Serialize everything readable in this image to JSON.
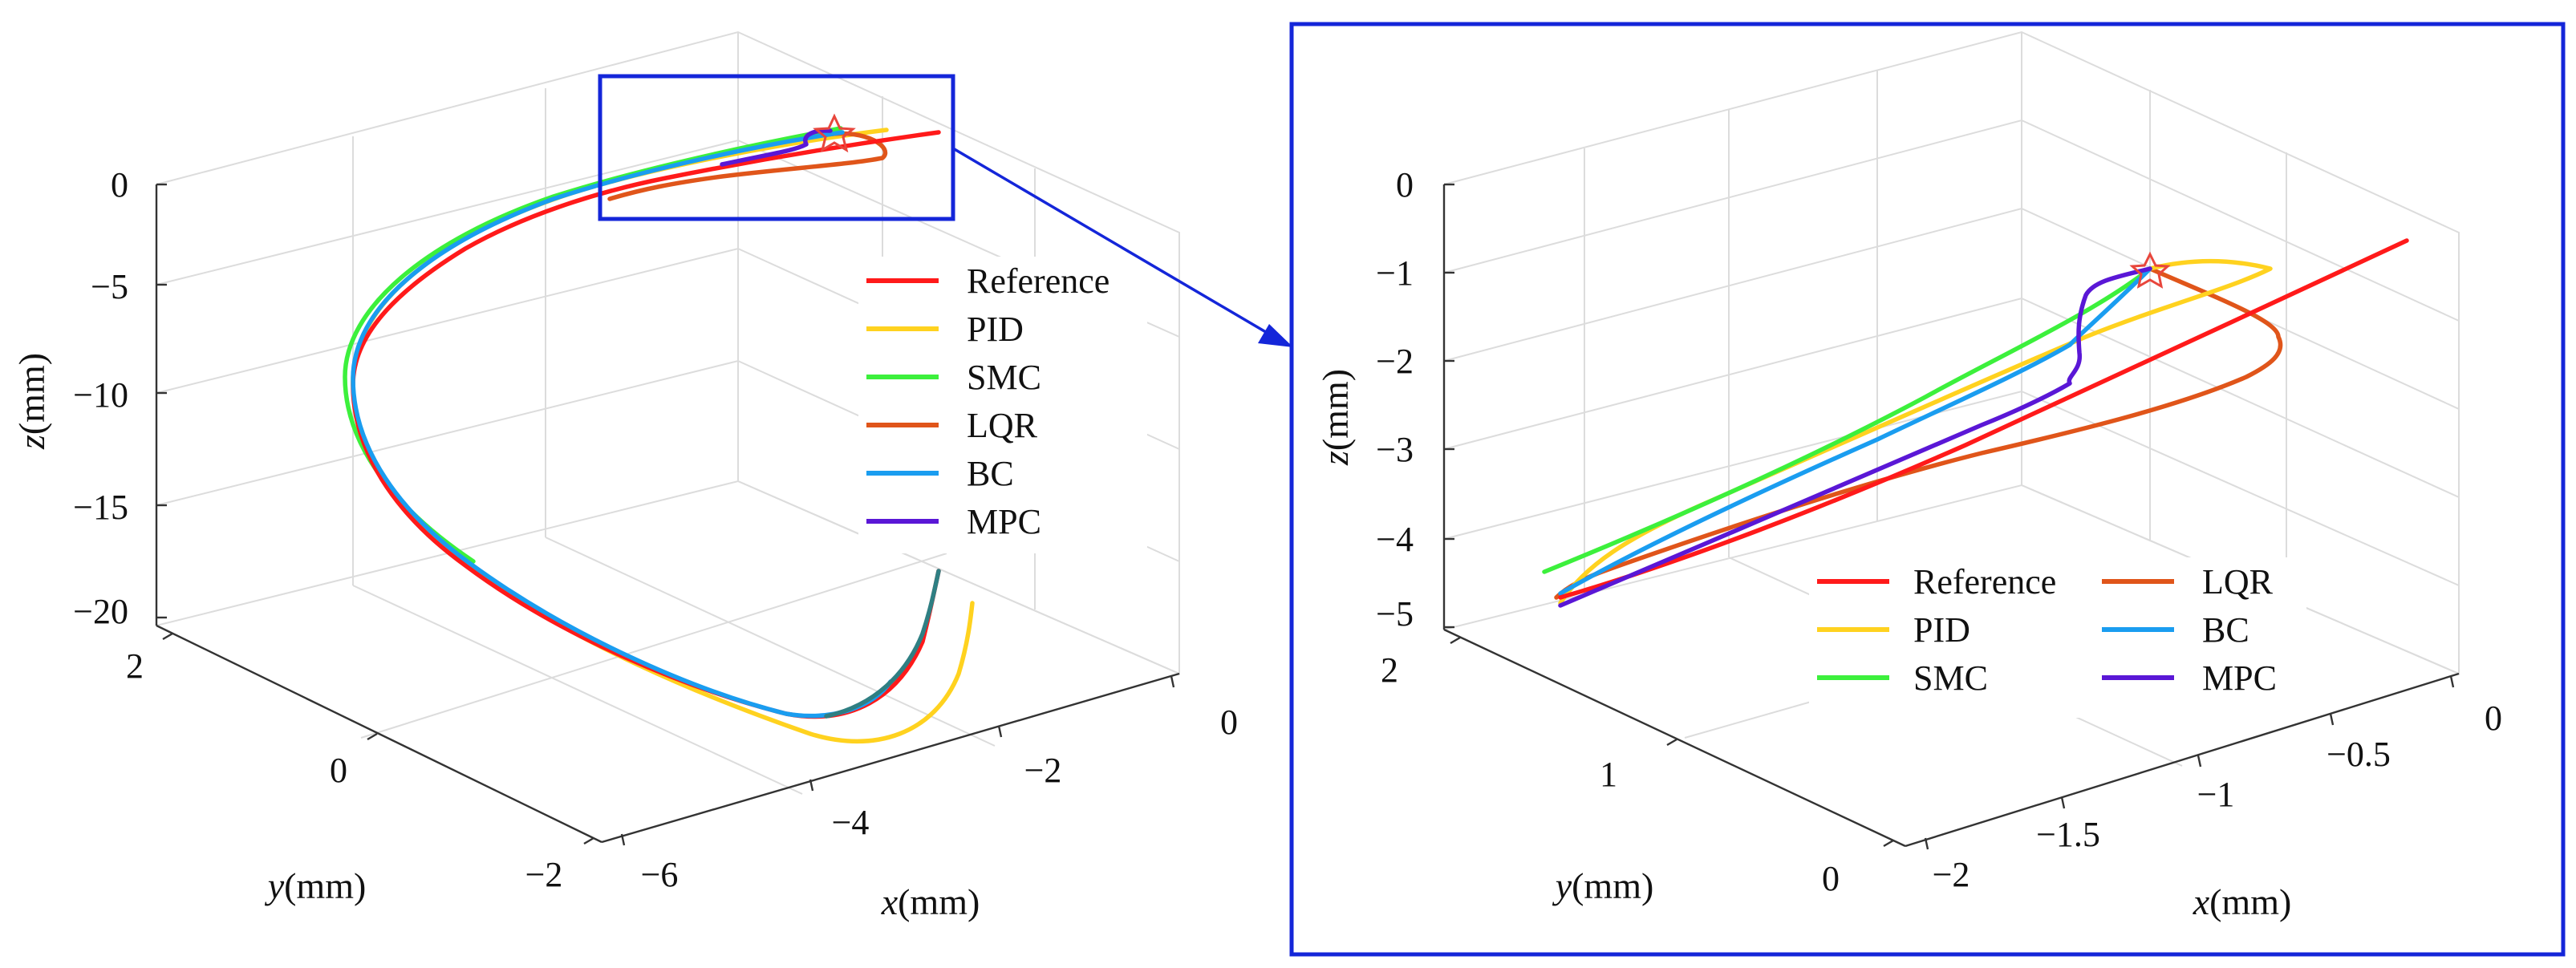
{
  "chart_data": [
    {
      "type": "line",
      "title": "",
      "xlabel_var": "x",
      "xlabel_unit": "(mm)",
      "ylabel_var": "y",
      "ylabel_unit": "(mm)",
      "zlabel_var": "z",
      "zlabel_unit": "(mm)",
      "xlim": [
        -6,
        0
      ],
      "ylim": [
        -2,
        2
      ],
      "zlim": [
        -20,
        0
      ],
      "x_ticks": [
        "−6",
        "−4",
        "−2",
        "0"
      ],
      "y_ticks": [
        "−2",
        "0",
        "2"
      ],
      "z_ticks": [
        "−20",
        "−15",
        "−10",
        "−5",
        "0"
      ],
      "legend_position": "right",
      "legend": [
        "Reference",
        "PID",
        "SMC",
        "LQR",
        "BC",
        "MPC"
      ],
      "start_marker": "star"
    },
    {
      "type": "line",
      "title": "",
      "xlabel_var": "x",
      "xlabel_unit": "(mm)",
      "ylabel_var": "y",
      "ylabel_unit": "(mm)",
      "zlabel_var": "z",
      "zlabel_unit": "(mm)",
      "xlim": [
        -2,
        0
      ],
      "ylim": [
        0,
        2
      ],
      "zlim": [
        -5,
        0
      ],
      "x_ticks": [
        "−2",
        "−1.5",
        "−1",
        "−0.5",
        "0"
      ],
      "y_ticks": [
        "0",
        "1",
        "2"
      ],
      "z_ticks": [
        "−5",
        "−4",
        "−3",
        "−2",
        "−1",
        "0"
      ],
      "legend_position": "bottom",
      "legend": [
        "Reference",
        "LQR",
        "PID",
        "BC",
        "SMC",
        "MPC"
      ],
      "start_marker": "star"
    }
  ],
  "series_colors": {
    "Reference": "#ff1a1a",
    "PID": "#ffd21f",
    "SMC": "#3cf03c",
    "LQR": "#e0551a",
    "BC": "#1a9df0",
    "MPC": "#5a17d6"
  },
  "zoom_box_color": "#1426d9"
}
